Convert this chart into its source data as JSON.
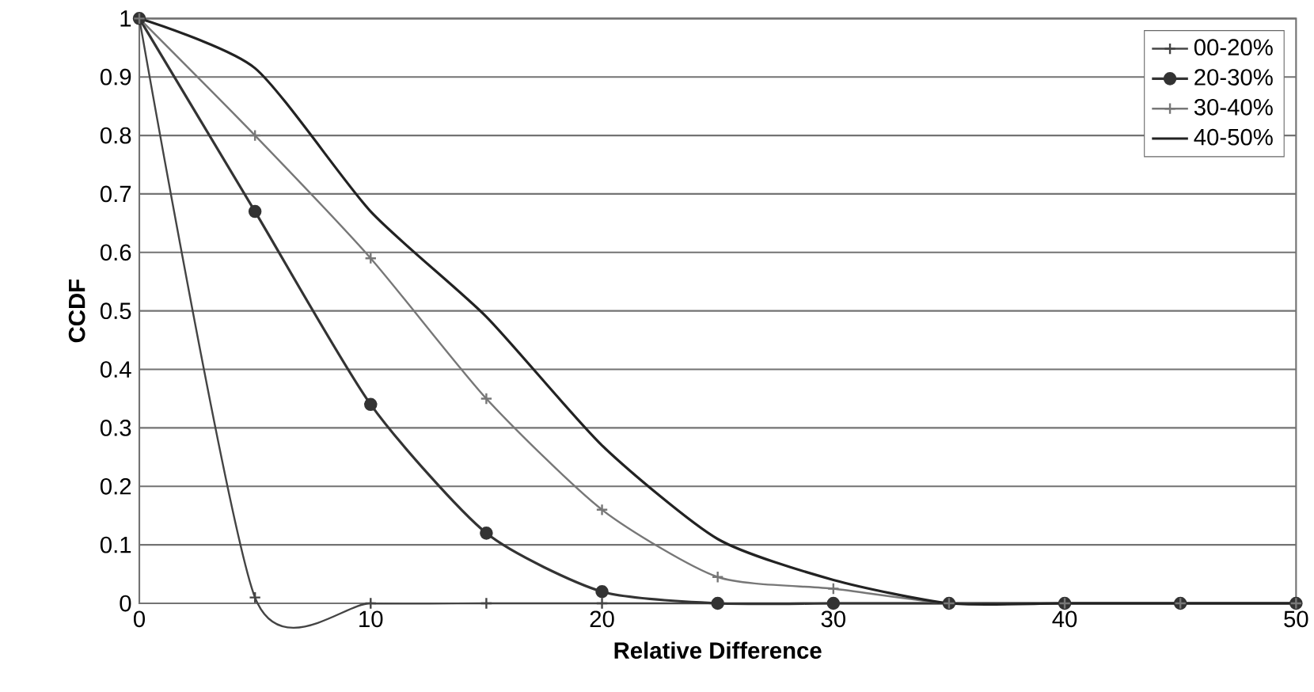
{
  "chart_data": {
    "type": "line",
    "xlabel": "Relative Difference",
    "ylabel": "CCDF",
    "x": [
      0,
      5,
      10,
      15,
      20,
      25,
      30,
      35,
      40,
      45,
      50
    ],
    "series": [
      {
        "name": "00-20%",
        "color": "#444444",
        "marker": "cross",
        "values": [
          1,
          0.01,
          0,
          0,
          0,
          0,
          0,
          0,
          0,
          0,
          0
        ]
      },
      {
        "name": "20-30%",
        "color": "#333333",
        "marker": "circle",
        "values": [
          1,
          0.67,
          0.34,
          0.12,
          0.02,
          0,
          0,
          0,
          0,
          0,
          0
        ]
      },
      {
        "name": "30-40%",
        "color": "#777777",
        "marker": "cross",
        "values": [
          1,
          0.8,
          0.59,
          0.35,
          0.16,
          0.045,
          0.025,
          0,
          0,
          0,
          0
        ]
      },
      {
        "name": "40-50%",
        "color": "#222222",
        "marker": "none",
        "values": [
          1,
          0.915,
          0.67,
          0.49,
          0.27,
          0.11,
          0.04,
          0,
          0,
          0,
          0
        ]
      }
    ],
    "xlim": [
      0,
      50
    ],
    "xticks": [
      0,
      10,
      20,
      30,
      40,
      50
    ],
    "ylim": [
      0,
      1
    ],
    "yticks": [
      0,
      0.1,
      0.2,
      0.3,
      0.4,
      0.5,
      0.6,
      0.7,
      0.8,
      0.9,
      1
    ],
    "grid": "y",
    "legend": "top right",
    "line_style": "solid"
  }
}
